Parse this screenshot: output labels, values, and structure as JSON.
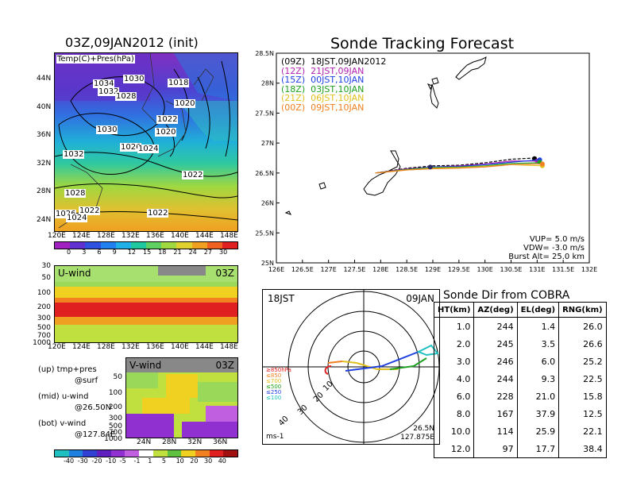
{
  "left": {
    "map_title": "03Z,09JAN2012 (init)",
    "map_field_label": "Temp(C)+Pres(hPa)",
    "map_lat_ticks": [
      "44N",
      "40N",
      "36N",
      "32N",
      "28N",
      "24N"
    ],
    "map_lon_ticks": [
      "120E",
      "124E",
      "128E",
      "132E",
      "136E",
      "140E",
      "144E",
      "148E"
    ],
    "pressure_labels": [
      "1030",
      "1034",
      "1032",
      "1028",
      "1018",
      "1020",
      "1022",
      "1030",
      "1020",
      "1026",
      "1024",
      "1032",
      "1022",
      "1028",
      "1022",
      "1026",
      "1024",
      "1022"
    ],
    "temp_colorbar_ticks": [
      "0",
      "3",
      "6",
      "9",
      "12",
      "15",
      "18",
      "21",
      "24",
      "27",
      "30"
    ],
    "temp_colorbar_colors": [
      "#a020c0",
      "#6030d0",
      "#3050e0",
      "#2080f0",
      "#20b0e8",
      "#20c8a0",
      "#60d060",
      "#a0d840",
      "#e0d030",
      "#f0a020",
      "#f06020",
      "#e02020"
    ],
    "uwind_label": "U-wind",
    "uwind_time": "03Z",
    "uwind_y_ticks": [
      "30",
      "50",
      "100",
      "200",
      "300",
      "500",
      "700",
      "1000"
    ],
    "uwind_x_ticks": [
      "120E",
      "124E",
      "128E",
      "132E",
      "136E",
      "140E",
      "144E",
      "148E"
    ],
    "vwind_label": "V-wind",
    "vwind_time": "03Z",
    "vwind_y_ticks": [
      "50",
      "100",
      "200",
      "300",
      "500",
      "700",
      "1000"
    ],
    "vwind_x_ticks": [
      "24N",
      "28N",
      "32N",
      "36N"
    ],
    "notes": [
      {
        "head": "(up) tmp+pres",
        "sub": "@surf"
      },
      {
        "head": "(mid) u-wind",
        "sub": "@26.50N"
      },
      {
        "head": "(bot) v-wind",
        "sub": "@127.84E"
      }
    ],
    "wind_colorbar_ticks": [
      "-40",
      "-30",
      "-20",
      "-10",
      "-5",
      "-1",
      "1",
      "5",
      "10",
      "20",
      "30",
      "40"
    ],
    "wind_colorbar_colors": [
      "#20c0c0",
      "#2080e0",
      "#3040d0",
      "#6020c0",
      "#9030d0",
      "#c060e0",
      "#ffffff",
      "#c0e040",
      "#60c040",
      "#f0d020",
      "#f08020",
      "#e02020",
      "#a01010"
    ]
  },
  "track": {
    "title": "Sonde Tracking Forecast",
    "legend": [
      {
        "label": "(09Z)  18JST,09JAN2012",
        "color": "#000000"
      },
      {
        "label": "(12Z)  21JST,09JAN",
        "color": "#b020b0"
      },
      {
        "label": "(15Z)  00JST,10JAN",
        "color": "#2040e0"
      },
      {
        "label": "(18Z)  03JST,10JAN",
        "color": "#20a020"
      },
      {
        "label": "(21Z)  06JST,10JAN",
        "color": "#e0c020"
      },
      {
        "label": "(00Z)  09JST,10JAN",
        "color": "#f08020"
      }
    ],
    "params": [
      "VUP= 5.0 m/s",
      "VDW= -3.0 m/s",
      "Burst Alt= 25.0 km"
    ]
  },
  "polar": {
    "time_left": "18JST",
    "time_right": "09JAN",
    "pressure_legend": [
      {
        "label": "≥850hPa",
        "color": "#e02020"
      },
      {
        "label": "≤850",
        "color": "#f08020"
      },
      {
        "label": "≤700",
        "color": "#e0c020"
      },
      {
        "label": "≤500",
        "color": "#20a020"
      },
      {
        "label": "≤250",
        "color": "#2040e0"
      },
      {
        "label": "≤100",
        "color": "#20c0c0"
      }
    ],
    "ring_labels": [
      "10",
      "20",
      "30",
      "40"
    ],
    "unit": "ms-1",
    "loc_lat": "26.5N",
    "loc_lon": "127.875E"
  },
  "sonde_dir": {
    "title": "Sonde Dir from COBRA",
    "headers": [
      "HT(km)",
      "AZ(deg)",
      "EL(deg)",
      "RNG(km)"
    ],
    "rows": [
      [
        "1.0",
        "244",
        "1.4",
        "26.0"
      ],
      [
        "2.0",
        "245",
        "3.5",
        "26.6"
      ],
      [
        "3.0",
        "246",
        "6.0",
        "25.2"
      ],
      [
        "4.0",
        "244",
        "9.3",
        "22.5"
      ],
      [
        "6.0",
        "228",
        "21.0",
        "15.8"
      ],
      [
        "8.0",
        "167",
        "37.9",
        "12.5"
      ],
      [
        "10.0",
        "114",
        "25.9",
        "22.1"
      ],
      [
        "12.0",
        "97",
        "17.7",
        "38.4"
      ]
    ]
  },
  "chart_data": {
    "type": "line",
    "title": "Sonde Tracking Forecast",
    "xlim": [
      126,
      132
    ],
    "ylim": [
      25,
      28.5
    ],
    "x_ticks": [
      "126E",
      "126.5E",
      "127E",
      "127.5E",
      "128E",
      "128.5E",
      "129E",
      "129.5E",
      "130E",
      "130.5E",
      "131E",
      "131.5E",
      "132E"
    ],
    "y_ticks": [
      "25N",
      "25.5N",
      "26N",
      "26.5N",
      "27N",
      "27.5N",
      "28N",
      "28.5N"
    ],
    "grid": false,
    "legend_position": "top-left",
    "series": [
      {
        "name": "(09Z)  18JST,09JAN2012",
        "color": "#000000",
        "dashed": true,
        "points": [
          [
            127.9,
            26.5
          ],
          [
            128.5,
            26.58
          ],
          [
            129.0,
            26.62
          ],
          [
            129.5,
            26.63
          ],
          [
            130.0,
            26.67
          ],
          [
            130.5,
            26.73
          ],
          [
            130.95,
            26.75
          ]
        ],
        "end": [
          130.95,
          26.74
        ]
      },
      {
        "name": "(12Z)  21JST,09JAN",
        "color": "#b020b0",
        "dashed": false,
        "points": [
          [
            127.9,
            26.5
          ],
          [
            128.5,
            26.57
          ],
          [
            129.0,
            26.6
          ],
          [
            129.5,
            26.62
          ],
          [
            130.0,
            26.65
          ],
          [
            130.5,
            26.7
          ],
          [
            131.0,
            26.7
          ]
        ],
        "end": [
          131.0,
          26.7
        ]
      },
      {
        "name": "(15Z)  00JST,10JAN",
        "color": "#2040e0",
        "dashed": false,
        "points": [
          [
            127.9,
            26.5
          ],
          [
            128.5,
            26.56
          ],
          [
            129.0,
            26.6
          ],
          [
            129.5,
            26.61
          ],
          [
            130.0,
            26.64
          ],
          [
            130.5,
            26.68
          ],
          [
            131.05,
            26.72
          ]
        ],
        "end": [
          131.05,
          26.72
        ]
      },
      {
        "name": "(18Z)  03JST,10JAN",
        "color": "#20a020",
        "dashed": false,
        "points": [
          [
            127.9,
            26.5
          ],
          [
            128.5,
            26.56
          ],
          [
            129.0,
            26.59
          ],
          [
            129.5,
            26.6
          ],
          [
            130.0,
            26.62
          ],
          [
            130.5,
            26.66
          ],
          [
            131.05,
            26.67
          ]
        ],
        "end": [
          131.05,
          26.68
        ]
      },
      {
        "name": "(21Z)  06JST,10JAN",
        "color": "#e0c020",
        "dashed": false,
        "points": [
          [
            127.9,
            26.5
          ],
          [
            128.5,
            26.55
          ],
          [
            129.0,
            26.58
          ],
          [
            129.5,
            26.59
          ],
          [
            130.0,
            26.61
          ],
          [
            130.5,
            26.64
          ],
          [
            131.1,
            26.62
          ]
        ],
        "end": [
          131.1,
          26.62
        ]
      },
      {
        "name": "(00Z)  09JST,10JAN",
        "color": "#f08020",
        "dashed": false,
        "points": [
          [
            127.9,
            26.5
          ],
          [
            128.5,
            26.55
          ],
          [
            129.0,
            26.57
          ],
          [
            129.5,
            26.58
          ],
          [
            130.0,
            26.6
          ],
          [
            130.5,
            26.64
          ],
          [
            131.1,
            26.65
          ]
        ],
        "end": [
          131.1,
          26.65
        ]
      }
    ],
    "launch_points": [
      [
        128.95,
        26.6
      ]
    ]
  }
}
